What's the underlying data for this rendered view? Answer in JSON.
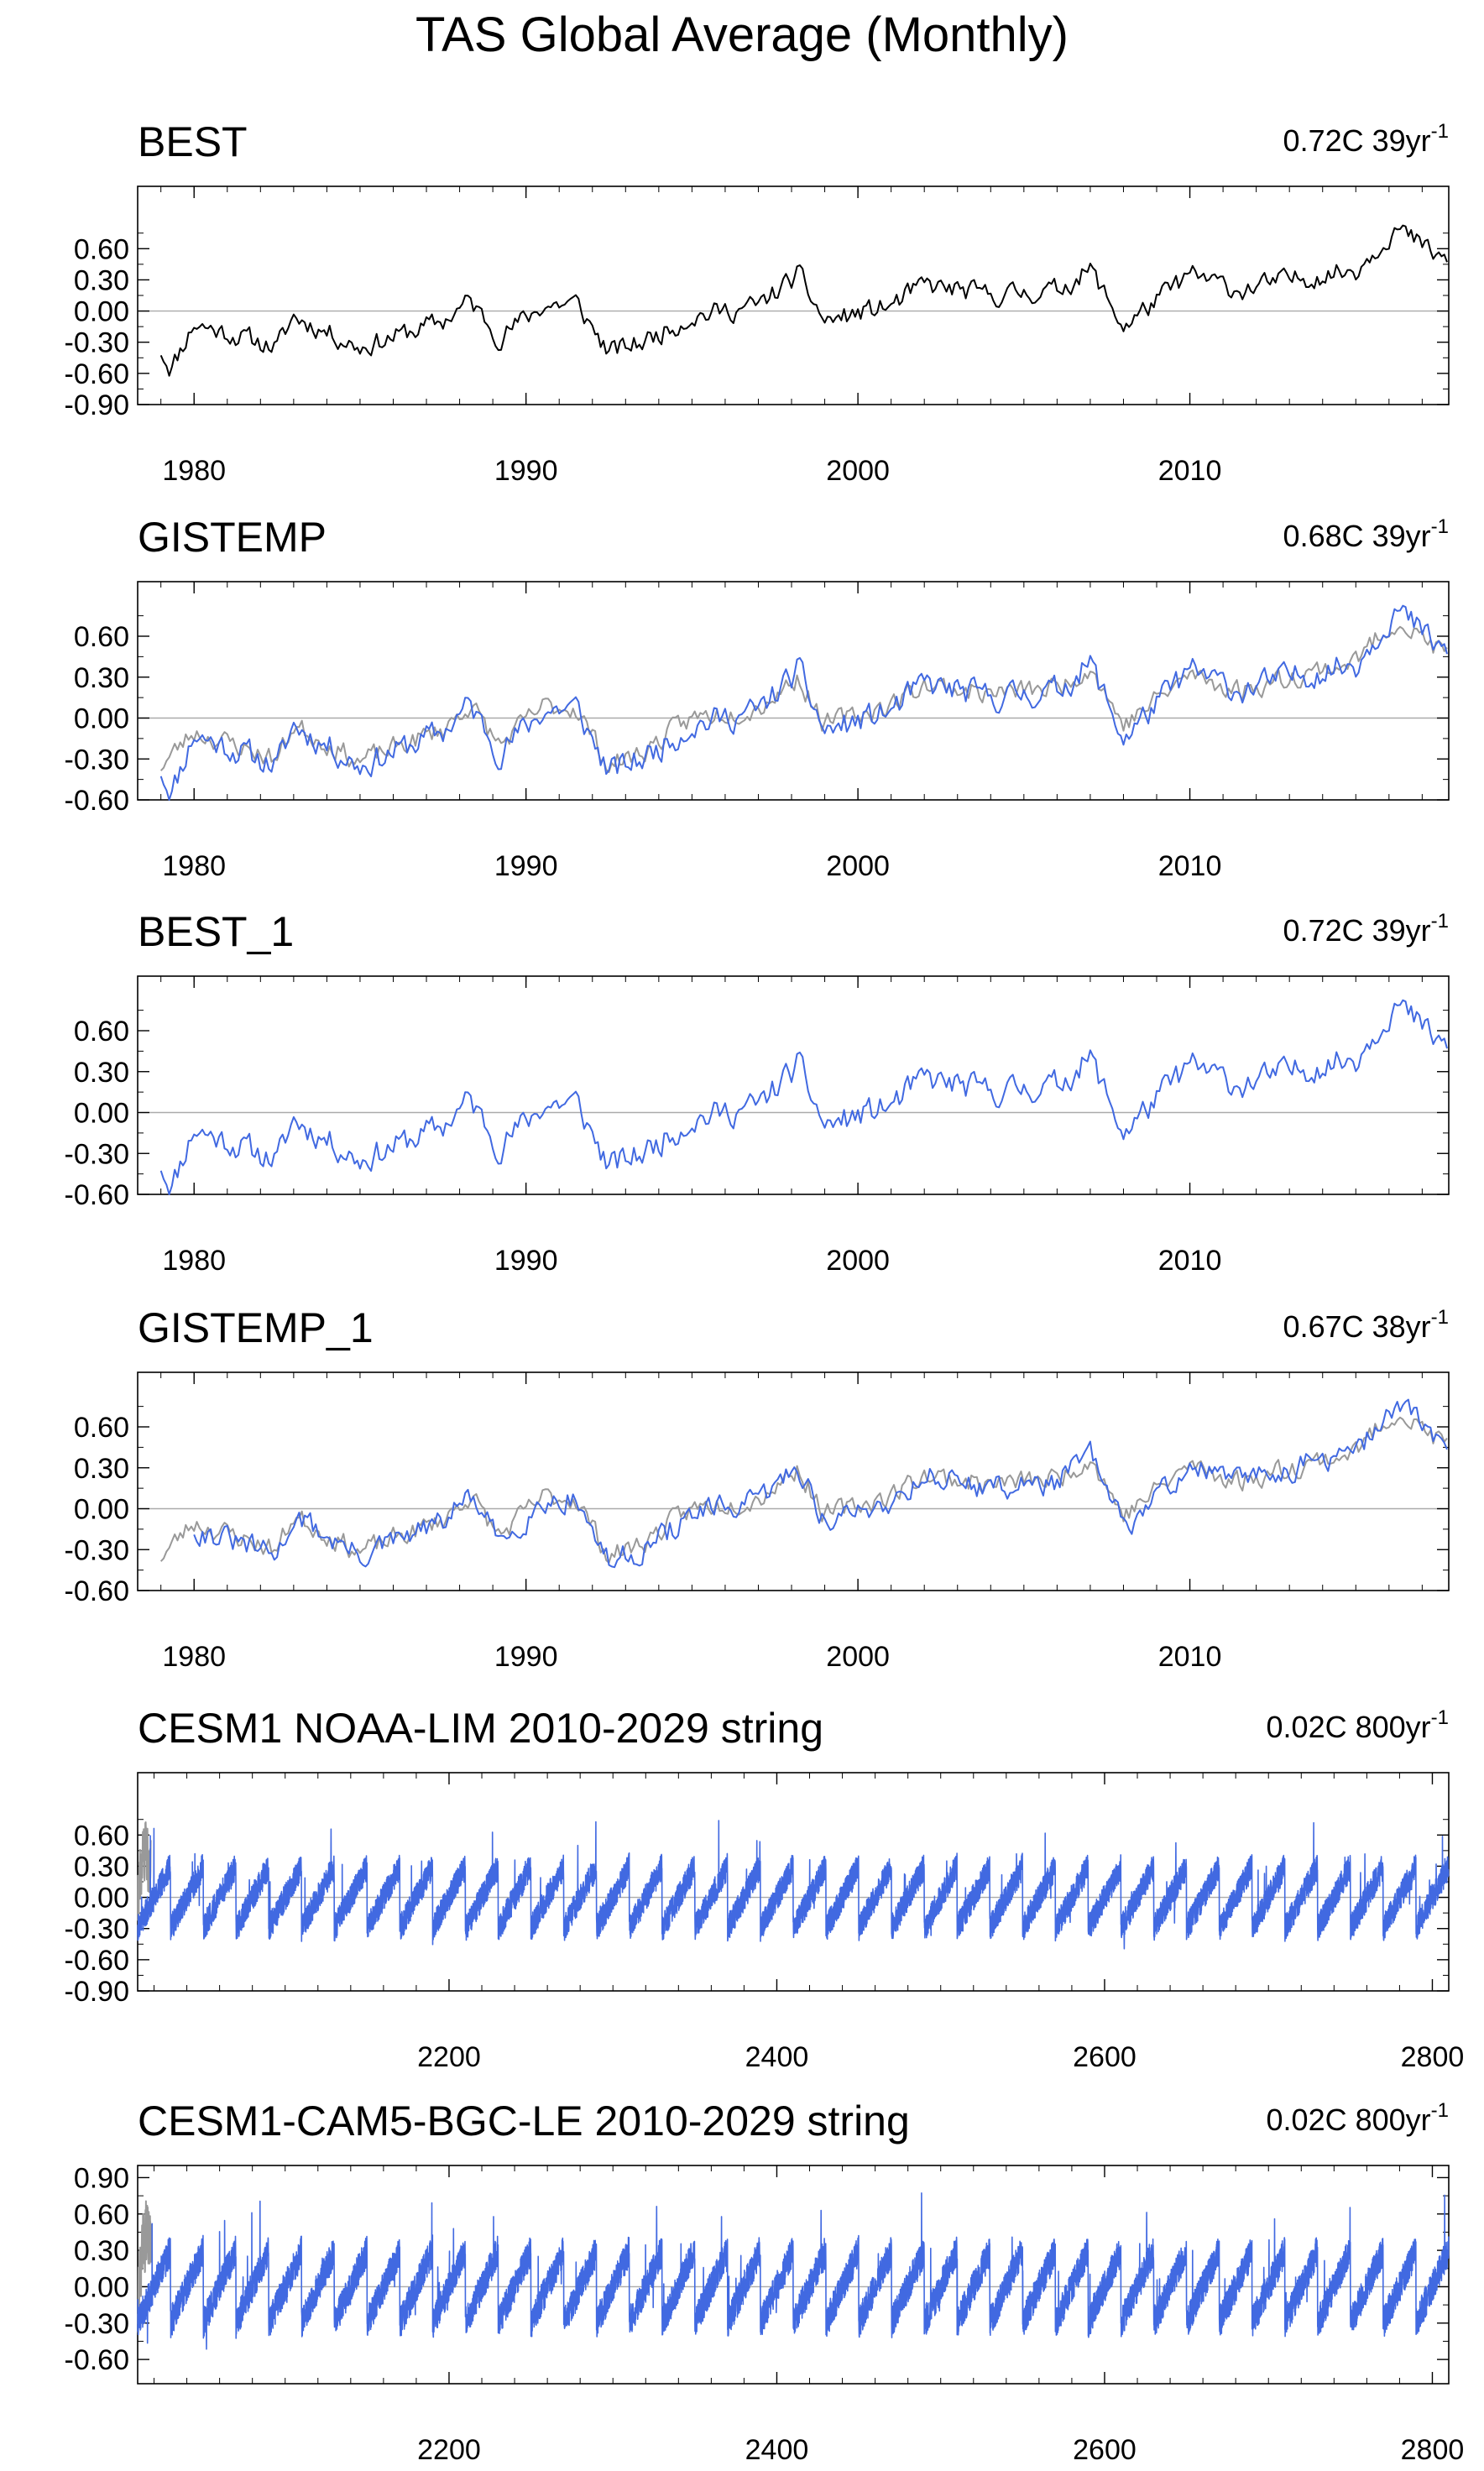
{
  "figure": {
    "title": "TAS Global Average (Monthly)"
  },
  "chart_data": [
    {
      "type": "line",
      "title": "BEST",
      "trend_label": "0.72C 39yr",
      "trend_exponent": "-1",
      "xlim": [
        1978.3,
        2017.8
      ],
      "ylim": [
        -0.9,
        1.2
      ],
      "yticks": [
        "0.60",
        "0.30",
        "0.00",
        "-0.30",
        "-0.60",
        "-0.90"
      ],
      "xticks": [
        "1980",
        "1990",
        "2000",
        "2010"
      ],
      "series": [
        {
          "color": "#000000",
          "keypoints": [
            [
              1979.0,
              -0.38
            ],
            [
              1979.3,
              -0.55
            ],
            [
              1980.0,
              -0.12
            ],
            [
              1982.5,
              -0.35
            ],
            [
              1983.0,
              -0.05
            ],
            [
              1985.0,
              -0.35
            ],
            [
              1987.5,
              -0.1
            ],
            [
              1988.3,
              0.1
            ],
            [
              1989.2,
              -0.25
            ],
            [
              1990.5,
              0.05
            ],
            [
              1991.5,
              0.08
            ],
            [
              1992.5,
              -0.4
            ],
            [
              1993.5,
              -0.3
            ],
            [
              1995.0,
              -0.05
            ],
            [
              1997.0,
              0.05
            ],
            [
              1998.2,
              0.35
            ],
            [
              1999.0,
              -0.1
            ],
            [
              2001.0,
              0.05
            ],
            [
              2002.0,
              0.25
            ],
            [
              2004.0,
              0.15
            ],
            [
              2006.0,
              0.2
            ],
            [
              2007.0,
              0.4
            ],
            [
              2008.0,
              -0.15
            ],
            [
              2010.0,
              0.35
            ],
            [
              2011.5,
              0.2
            ],
            [
              2013.0,
              0.3
            ],
            [
              2015.0,
              0.4
            ],
            [
              2016.2,
              0.8
            ],
            [
              2017.8,
              0.45
            ]
          ],
          "noise": 0.09,
          "seed": 11
        }
      ]
    },
    {
      "type": "line",
      "title": "GISTEMP",
      "trend_label": "0.68C 39yr",
      "trend_exponent": "-1",
      "xlim": [
        1978.3,
        2017.8
      ],
      "ylim": [
        -0.6,
        1.0
      ],
      "yticks": [
        "0.60",
        "0.30",
        "0.00",
        "-0.30",
        "-0.60"
      ],
      "xticks": [
        "1980",
        "1990",
        "2000",
        "2010"
      ],
      "series": [
        {
          "color": "#999999",
          "keypoints": [
            [
              1979.0,
              -0.35
            ],
            [
              1980.0,
              -0.1
            ],
            [
              1982.5,
              -0.3
            ],
            [
              1983.0,
              -0.05
            ],
            [
              1985.0,
              -0.32
            ],
            [
              1987.5,
              -0.08
            ],
            [
              1988.3,
              0.1
            ],
            [
              1989.2,
              -0.2
            ],
            [
              1990.5,
              0.08
            ],
            [
              1991.5,
              0.08
            ],
            [
              1992.5,
              -0.35
            ],
            [
              1993.5,
              -0.25
            ],
            [
              1995.0,
              0.0
            ],
            [
              1997.0,
              0.08
            ],
            [
              1998.2,
              0.3
            ],
            [
              1999.0,
              -0.05
            ],
            [
              2001.0,
              0.1
            ],
            [
              2002.0,
              0.25
            ],
            [
              2004.0,
              0.18
            ],
            [
              2006.0,
              0.22
            ],
            [
              2007.0,
              0.38
            ],
            [
              2008.0,
              -0.05
            ],
            [
              2010.0,
              0.32
            ],
            [
              2011.5,
              0.2
            ],
            [
              2013.0,
              0.3
            ],
            [
              2015.0,
              0.42
            ],
            [
              2016.2,
              0.72
            ],
            [
              2017.8,
              0.45
            ]
          ],
          "noise": 0.07,
          "seed": 23
        },
        {
          "color": "#4169e1",
          "keypoints": [
            [
              1979.0,
              -0.38
            ],
            [
              1979.3,
              -0.55
            ],
            [
              1980.0,
              -0.12
            ],
            [
              1982.5,
              -0.35
            ],
            [
              1983.0,
              -0.05
            ],
            [
              1985.0,
              -0.35
            ],
            [
              1987.5,
              -0.1
            ],
            [
              1988.3,
              0.1
            ],
            [
              1989.2,
              -0.25
            ],
            [
              1990.5,
              0.05
            ],
            [
              1991.5,
              0.08
            ],
            [
              1992.5,
              -0.4
            ],
            [
              1993.5,
              -0.3
            ],
            [
              1995.0,
              -0.05
            ],
            [
              1997.0,
              0.05
            ],
            [
              1998.2,
              0.35
            ],
            [
              1999.0,
              -0.1
            ],
            [
              2001.0,
              0.05
            ],
            [
              2002.0,
              0.25
            ],
            [
              2004.0,
              0.15
            ],
            [
              2006.0,
              0.2
            ],
            [
              2007.0,
              0.4
            ],
            [
              2008.0,
              -0.15
            ],
            [
              2010.0,
              0.35
            ],
            [
              2011.5,
              0.2
            ],
            [
              2013.0,
              0.3
            ],
            [
              2015.0,
              0.4
            ],
            [
              2016.2,
              0.8
            ],
            [
              2017.8,
              0.45
            ]
          ],
          "noise": 0.09,
          "seed": 11
        }
      ]
    },
    {
      "type": "line",
      "title": "BEST_1",
      "trend_label": "0.72C 39yr",
      "trend_exponent": "-1",
      "xlim": [
        1978.3,
        2017.8
      ],
      "ylim": [
        -0.6,
        1.0
      ],
      "yticks": [
        "0.60",
        "0.30",
        "0.00",
        "-0.30",
        "-0.60"
      ],
      "xticks": [
        "1980",
        "1990",
        "2000",
        "2010"
      ],
      "series": [
        {
          "color": "#4169e1",
          "keypoints": [
            [
              1979.0,
              -0.38
            ],
            [
              1979.3,
              -0.55
            ],
            [
              1980.0,
              -0.12
            ],
            [
              1982.5,
              -0.35
            ],
            [
              1983.0,
              -0.05
            ],
            [
              1985.0,
              -0.35
            ],
            [
              1987.5,
              -0.1
            ],
            [
              1988.3,
              0.1
            ],
            [
              1989.2,
              -0.25
            ],
            [
              1990.5,
              0.05
            ],
            [
              1991.5,
              0.08
            ],
            [
              1992.5,
              -0.4
            ],
            [
              1993.5,
              -0.3
            ],
            [
              1995.0,
              -0.05
            ],
            [
              1997.0,
              0.05
            ],
            [
              1998.2,
              0.35
            ],
            [
              1999.0,
              -0.1
            ],
            [
              2001.0,
              0.05
            ],
            [
              2002.0,
              0.25
            ],
            [
              2004.0,
              0.15
            ],
            [
              2006.0,
              0.2
            ],
            [
              2007.0,
              0.4
            ],
            [
              2008.0,
              -0.15
            ],
            [
              2010.0,
              0.35
            ],
            [
              2011.5,
              0.2
            ],
            [
              2013.0,
              0.3
            ],
            [
              2015.0,
              0.4
            ],
            [
              2016.2,
              0.8
            ],
            [
              2017.8,
              0.45
            ]
          ],
          "noise": 0.09,
          "seed": 11
        }
      ]
    },
    {
      "type": "line",
      "title": "GISTEMP_1",
      "trend_label": "0.67C 38yr",
      "trend_exponent": "-1",
      "xlim": [
        1978.3,
        2017.8
      ],
      "ylim": [
        -0.6,
        1.0
      ],
      "yticks": [
        "0.60",
        "0.30",
        "0.00",
        "-0.30",
        "-0.60"
      ],
      "xticks": [
        "1980",
        "1990",
        "2000",
        "2010"
      ],
      "series": [
        {
          "color": "#999999",
          "keypoints": [
            [
              1979.0,
              -0.35
            ],
            [
              1980.0,
              -0.1
            ],
            [
              1982.5,
              -0.3
            ],
            [
              1983.0,
              -0.05
            ],
            [
              1985.0,
              -0.32
            ],
            [
              1987.5,
              -0.08
            ],
            [
              1988.3,
              0.1
            ],
            [
              1989.2,
              -0.2
            ],
            [
              1990.5,
              0.08
            ],
            [
              1991.5,
              0.08
            ],
            [
              1992.5,
              -0.35
            ],
            [
              1993.5,
              -0.25
            ],
            [
              1995.0,
              0.0
            ],
            [
              1997.0,
              0.08
            ],
            [
              1998.2,
              0.3
            ],
            [
              1999.0,
              -0.05
            ],
            [
              2001.0,
              0.1
            ],
            [
              2002.0,
              0.25
            ],
            [
              2004.0,
              0.18
            ],
            [
              2006.0,
              0.22
            ],
            [
              2007.0,
              0.38
            ],
            [
              2008.0,
              -0.05
            ],
            [
              2010.0,
              0.32
            ],
            [
              2011.5,
              0.2
            ],
            [
              2013.0,
              0.3
            ],
            [
              2015.0,
              0.42
            ],
            [
              2016.2,
              0.72
            ],
            [
              2017.8,
              0.45
            ]
          ],
          "noise": 0.07,
          "seed": 23
        },
        {
          "color": "#4169e1",
          "keypoints": [
            [
              1980.0,
              -0.15
            ],
            [
              1982.5,
              -0.35
            ],
            [
              1983.0,
              -0.05
            ],
            [
              1985.0,
              -0.35
            ],
            [
              1987.5,
              -0.1
            ],
            [
              1988.3,
              0.1
            ],
            [
              1989.2,
              -0.25
            ],
            [
              1990.5,
              0.05
            ],
            [
              1991.5,
              0.08
            ],
            [
              1992.5,
              -0.4
            ],
            [
              1993.5,
              -0.3
            ],
            [
              1995.0,
              -0.05
            ],
            [
              1997.0,
              0.05
            ],
            [
              1998.2,
              0.32
            ],
            [
              1999.0,
              -0.1
            ],
            [
              2001.0,
              0.05
            ],
            [
              2002.0,
              0.25
            ],
            [
              2004.0,
              0.15
            ],
            [
              2006.0,
              0.2
            ],
            [
              2007.0,
              0.4
            ],
            [
              2008.0,
              -0.15
            ],
            [
              2010.0,
              0.32
            ],
            [
              2011.5,
              0.2
            ],
            [
              2013.0,
              0.3
            ],
            [
              2015.0,
              0.4
            ],
            [
              2016.2,
              0.78
            ],
            [
              2017.8,
              0.45
            ]
          ],
          "noise": 0.08,
          "seed": 31
        }
      ]
    },
    {
      "type": "line",
      "title": "CESM1 NOAA-LIM 2010-2029 string",
      "trend_label": "0.02C 800yr",
      "trend_exponent": "-1",
      "xlim": [
        2010,
        2810
      ],
      "ylim": [
        -0.9,
        1.2
      ],
      "yticks": [
        "0.60",
        "0.30",
        "0.00",
        "-0.30",
        "-0.60",
        "-0.90"
      ],
      "xticks": [
        "2200",
        "2400",
        "2600",
        "2800"
      ],
      "series": [
        {
          "color": "#999999",
          "keypoints": [
            [
              2010,
              -0.1
            ],
            [
              2014,
              0.5
            ],
            [
              2018,
              0.3
            ]
          ],
          "noise": 0.25,
          "seed": 41
        },
        {
          "color": "#4169e1",
          "sawtooth": {
            "start": 2010,
            "end": 2810,
            "period": 20,
            "low": -0.3,
            "high": 0.3
          },
          "noise": 0.13,
          "seed": 7
        }
      ]
    },
    {
      "type": "line",
      "title": "CESM1-CAM5-BGC-LE 2010-2029 string",
      "trend_label": "0.02C 800yr",
      "trend_exponent": "-1",
      "xlim": [
        2010,
        2810
      ],
      "ylim": [
        -0.8,
        1.0
      ],
      "yticks": [
        "0.90",
        "0.60",
        "0.30",
        "0.00",
        "-0.30",
        "-0.60"
      ],
      "xticks": [
        "2200",
        "2400",
        "2600",
        "2800"
      ],
      "series": [
        {
          "color": "#999999",
          "keypoints": [
            [
              2010,
              -0.1
            ],
            [
              2014,
              0.5
            ],
            [
              2018,
              0.3
            ]
          ],
          "noise": 0.25,
          "seed": 43
        },
        {
          "color": "#4169e1",
          "sawtooth": {
            "start": 2010,
            "end": 2810,
            "period": 20,
            "low": -0.3,
            "high": 0.3
          },
          "noise": 0.13,
          "seed": 9
        }
      ]
    }
  ]
}
